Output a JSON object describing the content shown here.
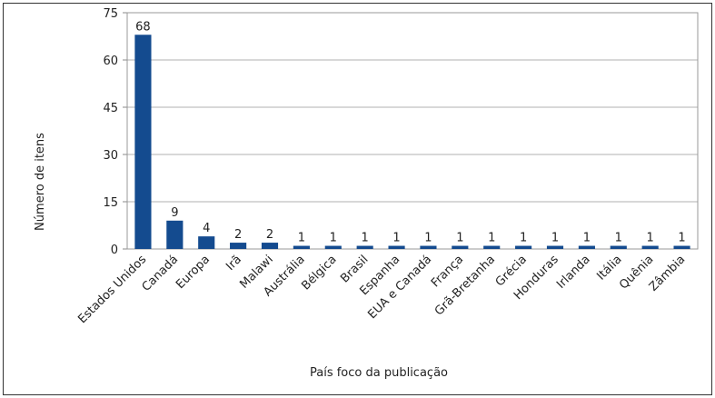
{
  "chart_data": {
    "type": "bar",
    "x_label": "País foco da publicação",
    "y_label": "Número de itens",
    "categories": [
      "Estados Unidos",
      "Canadá",
      "Europa",
      "Irã",
      "Malawi",
      "Austrália",
      "Bélgica",
      "Brasil",
      "Espanha",
      "EUA e Canadá",
      "França",
      "Grã-Bretanha",
      "Grécia",
      "Honduras",
      "Irlanda",
      "Itália",
      "Quênia",
      "Zâmbia"
    ],
    "values": [
      68,
      9,
      4,
      2,
      2,
      1,
      1,
      1,
      1,
      1,
      1,
      1,
      1,
      1,
      1,
      1,
      1,
      1
    ],
    "color": "#144b8f",
    "ylim": [
      0,
      75
    ],
    "yticks": [
      0,
      15,
      30,
      45,
      60,
      75
    ],
    "grid": true
  }
}
